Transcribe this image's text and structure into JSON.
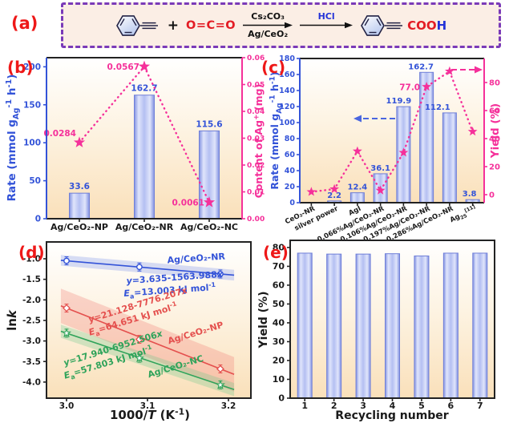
{
  "colors": {
    "red_label": "#ee1818",
    "blue": "#3353d8",
    "pink": "#f5309a",
    "bar_border": "#6f7fd8",
    "purple_border": "#7a3ab8",
    "scheme_bg": "#fbeee5",
    "plot_bottom": "#fae0ba",
    "red_series": "#e4504e",
    "green_series": "#2fa35a"
  },
  "scheme": {
    "panel_label": "(a)",
    "plus": "+",
    "co2": "O=C=O",
    "arrow1_top": "Cs₂CO₃",
    "arrow1_bottom": "Ag/CeO₂",
    "arrow2_top": "HCl",
    "product_coo": "COO",
    "product_h": "H"
  },
  "chart_data": [
    {
      "id": "b",
      "type": "bar",
      "panel_label": "(b)",
      "categories": [
        "Ag/CeO₂-NP",
        "Ag/CeO₂-NR",
        "Ag/CeO₂-NC"
      ],
      "left_axis": {
        "label_parts": [
          {
            "t": "Rate (mmol g"
          },
          {
            "t": "Ag",
            "sub": 1
          },
          {
            "t": "-1",
            "sup": 1
          },
          {
            "t": " h"
          },
          {
            "t": "-1",
            "sup": 1
          },
          {
            "t": ")"
          }
        ],
        "ticks": [
          "0",
          "50",
          "100",
          "150",
          "200"
        ],
        "tick_values": [
          0,
          50,
          100,
          150,
          200
        ],
        "max": 212
      },
      "right_axis": {
        "label_parts": [
          {
            "t": "Content of Ag"
          },
          {
            "t": "+",
            "sup": 1
          },
          {
            "t": " (mg)"
          }
        ],
        "ticks": [
          "0.00",
          "0.01",
          "0.02",
          "0.03",
          "0.04",
          "0.05",
          "0.06"
        ],
        "max": 0.06
      },
      "bars": {
        "name": "Rate (mmol per g Ag per h)",
        "values": [
          33.6,
          162.7,
          115.6
        ],
        "labels": [
          "33.6",
          "162.7",
          "115.6"
        ]
      },
      "stars": {
        "name": "Content of Ag+ (mg)",
        "values": [
          0.0284,
          0.0567,
          0.0061
        ],
        "labels": [
          "0.0284",
          "0.0567",
          "0.0061"
        ]
      }
    },
    {
      "id": "c",
      "type": "bar",
      "panel_label": "(c)",
      "categories": [
        "CeO₂-NR",
        "silver power",
        "AgI",
        "0.066%Ag/CeO₂-NR",
        "0.106%Ag/CeO₂-NR",
        "0.197%Ag/CeO₂-NR",
        "0.286%Ag/CeO₂-NR",
        [
          {
            "t": "Ag"
          },
          {
            "t": "25",
            "sub": 1
          },
          {
            "t": "[11]",
            "sup": 1
          }
        ]
      ],
      "left_axis": {
        "label_parts": [
          {
            "t": "Rate (mmol g"
          },
          {
            "t": "Ag",
            "sub": 1
          },
          {
            "t": "-1",
            "sup": 1
          },
          {
            "t": " h"
          },
          {
            "t": "-1",
            "sup": 1
          },
          {
            "t": ")"
          }
        ],
        "ticks": [
          "0",
          "20",
          "40",
          "60",
          "80",
          "100",
          "120",
          "140",
          "160",
          "180"
        ],
        "tick_values": [
          0,
          20,
          40,
          60,
          80,
          100,
          120,
          140,
          160,
          180
        ],
        "max": 180
      },
      "right_axis": {
        "label_parts": [
          {
            "t": "Yield (%)"
          }
        ],
        "ticks": [
          "0",
          "20",
          "40",
          "60",
          "80"
        ],
        "tick_values": [
          0,
          20,
          40,
          60,
          80
        ]
      },
      "bars": {
        "name": "Rate (mmol per g Ag per h)",
        "values": [
          null,
          2.2,
          12.4,
          36.1,
          119.9,
          162.7,
          112.1,
          3.8
        ],
        "labels": [
          null,
          "2.2",
          "12.4",
          "36.1",
          "119.9",
          "162.7",
          "112.1",
          "3.8"
        ]
      },
      "stars": {
        "name": "Yield (%)",
        "values": [
          2,
          4,
          31,
          3,
          30,
          77,
          88,
          45
        ],
        "labels": [
          null,
          null,
          null,
          null,
          null,
          "77.0",
          null,
          null
        ]
      }
    },
    {
      "id": "d",
      "type": "line",
      "panel_label": "(d)",
      "xlabel_parts": [
        {
          "t": "1000/"
        },
        {
          "t": "T",
          "i": 1
        },
        {
          "t": " (K"
        },
        {
          "t": "-1",
          "sup": 1
        },
        {
          "t": ")"
        }
      ],
      "ylabel_parts": [
        {
          "t": "ln"
        },
        {
          "t": "k",
          "i": 1
        }
      ],
      "xticks": [
        "3.0",
        "3.1",
        "3.2"
      ],
      "xtick_values": [
        3.0,
        3.1,
        3.2
      ],
      "yticks": [
        "-1.0",
        "-1.5",
        "-2.0",
        "-2.5",
        "-3.0",
        "-3.5",
        "-4.0"
      ],
      "ytick_values": [
        -1.0,
        -1.5,
        -2.0,
        -2.5,
        -3.0,
        -3.5,
        -4.0
      ],
      "series": [
        {
          "name": "Ag/CeO₂-NR",
          "color": "#3353d8",
          "marker": "circle",
          "band": 0.13,
          "x": [
            3.0,
            3.09,
            3.19
          ],
          "y": [
            -1.05,
            -1.2,
            -1.37
          ],
          "equation_parts": [
            {
              "t": "y",
              "i": 1
            },
            {
              "t": "=3.635-1563.988"
            },
            {
              "t": "x",
              "i": 1
            }
          ],
          "ea_parts": [
            {
              "t": "E",
              "i": 1
            },
            {
              "t": "a",
              "sub": 1
            },
            {
              "t": "=13.003 kJ mol"
            },
            {
              "t": "-1",
              "sup": 1
            }
          ]
        },
        {
          "name": "Ag/CeO₂-NP",
          "color": "#e4504e",
          "marker": "diamond",
          "band": 0.42,
          "x": [
            3.0,
            3.09,
            3.19
          ],
          "y": [
            -2.2,
            -2.96,
            -3.68
          ],
          "equation_parts": [
            {
              "t": "y",
              "i": 1
            },
            {
              "t": "=21.128-7776.207"
            },
            {
              "t": "x",
              "i": 1
            }
          ],
          "ea_parts": [
            {
              "t": "E",
              "i": 1
            },
            {
              "t": "a",
              "sub": 1
            },
            {
              "t": "=64.651 kJ mol"
            },
            {
              "t": "-1",
              "sup": 1
            }
          ]
        },
        {
          "name": "Ag/CeO₂-NC",
          "color": "#2fa35a",
          "marker": "star",
          "band": 0.16,
          "x": [
            3.0,
            3.09,
            3.19
          ],
          "y": [
            -2.81,
            -3.42,
            -4.07
          ],
          "equation_parts": [
            {
              "t": "y",
              "i": 1
            },
            {
              "t": "=17.940-6952.506"
            },
            {
              "t": "x",
              "i": 1
            }
          ],
          "ea_parts": [
            {
              "t": "E",
              "i": 1
            },
            {
              "t": "a",
              "sub": 1
            },
            {
              "t": "=57.803 kJ mol"
            },
            {
              "t": "-1",
              "sup": 1
            }
          ]
        }
      ]
    },
    {
      "id": "e",
      "type": "bar",
      "panel_label": "(e)",
      "categories": [
        "1",
        "2",
        "3",
        "4",
        "5",
        "6",
        "7"
      ],
      "values": [
        77,
        76.5,
        76.5,
        76.7,
        75.5,
        77,
        77
      ],
      "ylabel": "Yield (%)",
      "xlabel": "Recycling number",
      "yticks": [
        "0",
        "10",
        "20",
        "30",
        "40",
        "50",
        "60",
        "70",
        "80"
      ],
      "ytick_values": [
        0,
        10,
        20,
        30,
        40,
        50,
        60,
        70,
        80
      ]
    }
  ]
}
